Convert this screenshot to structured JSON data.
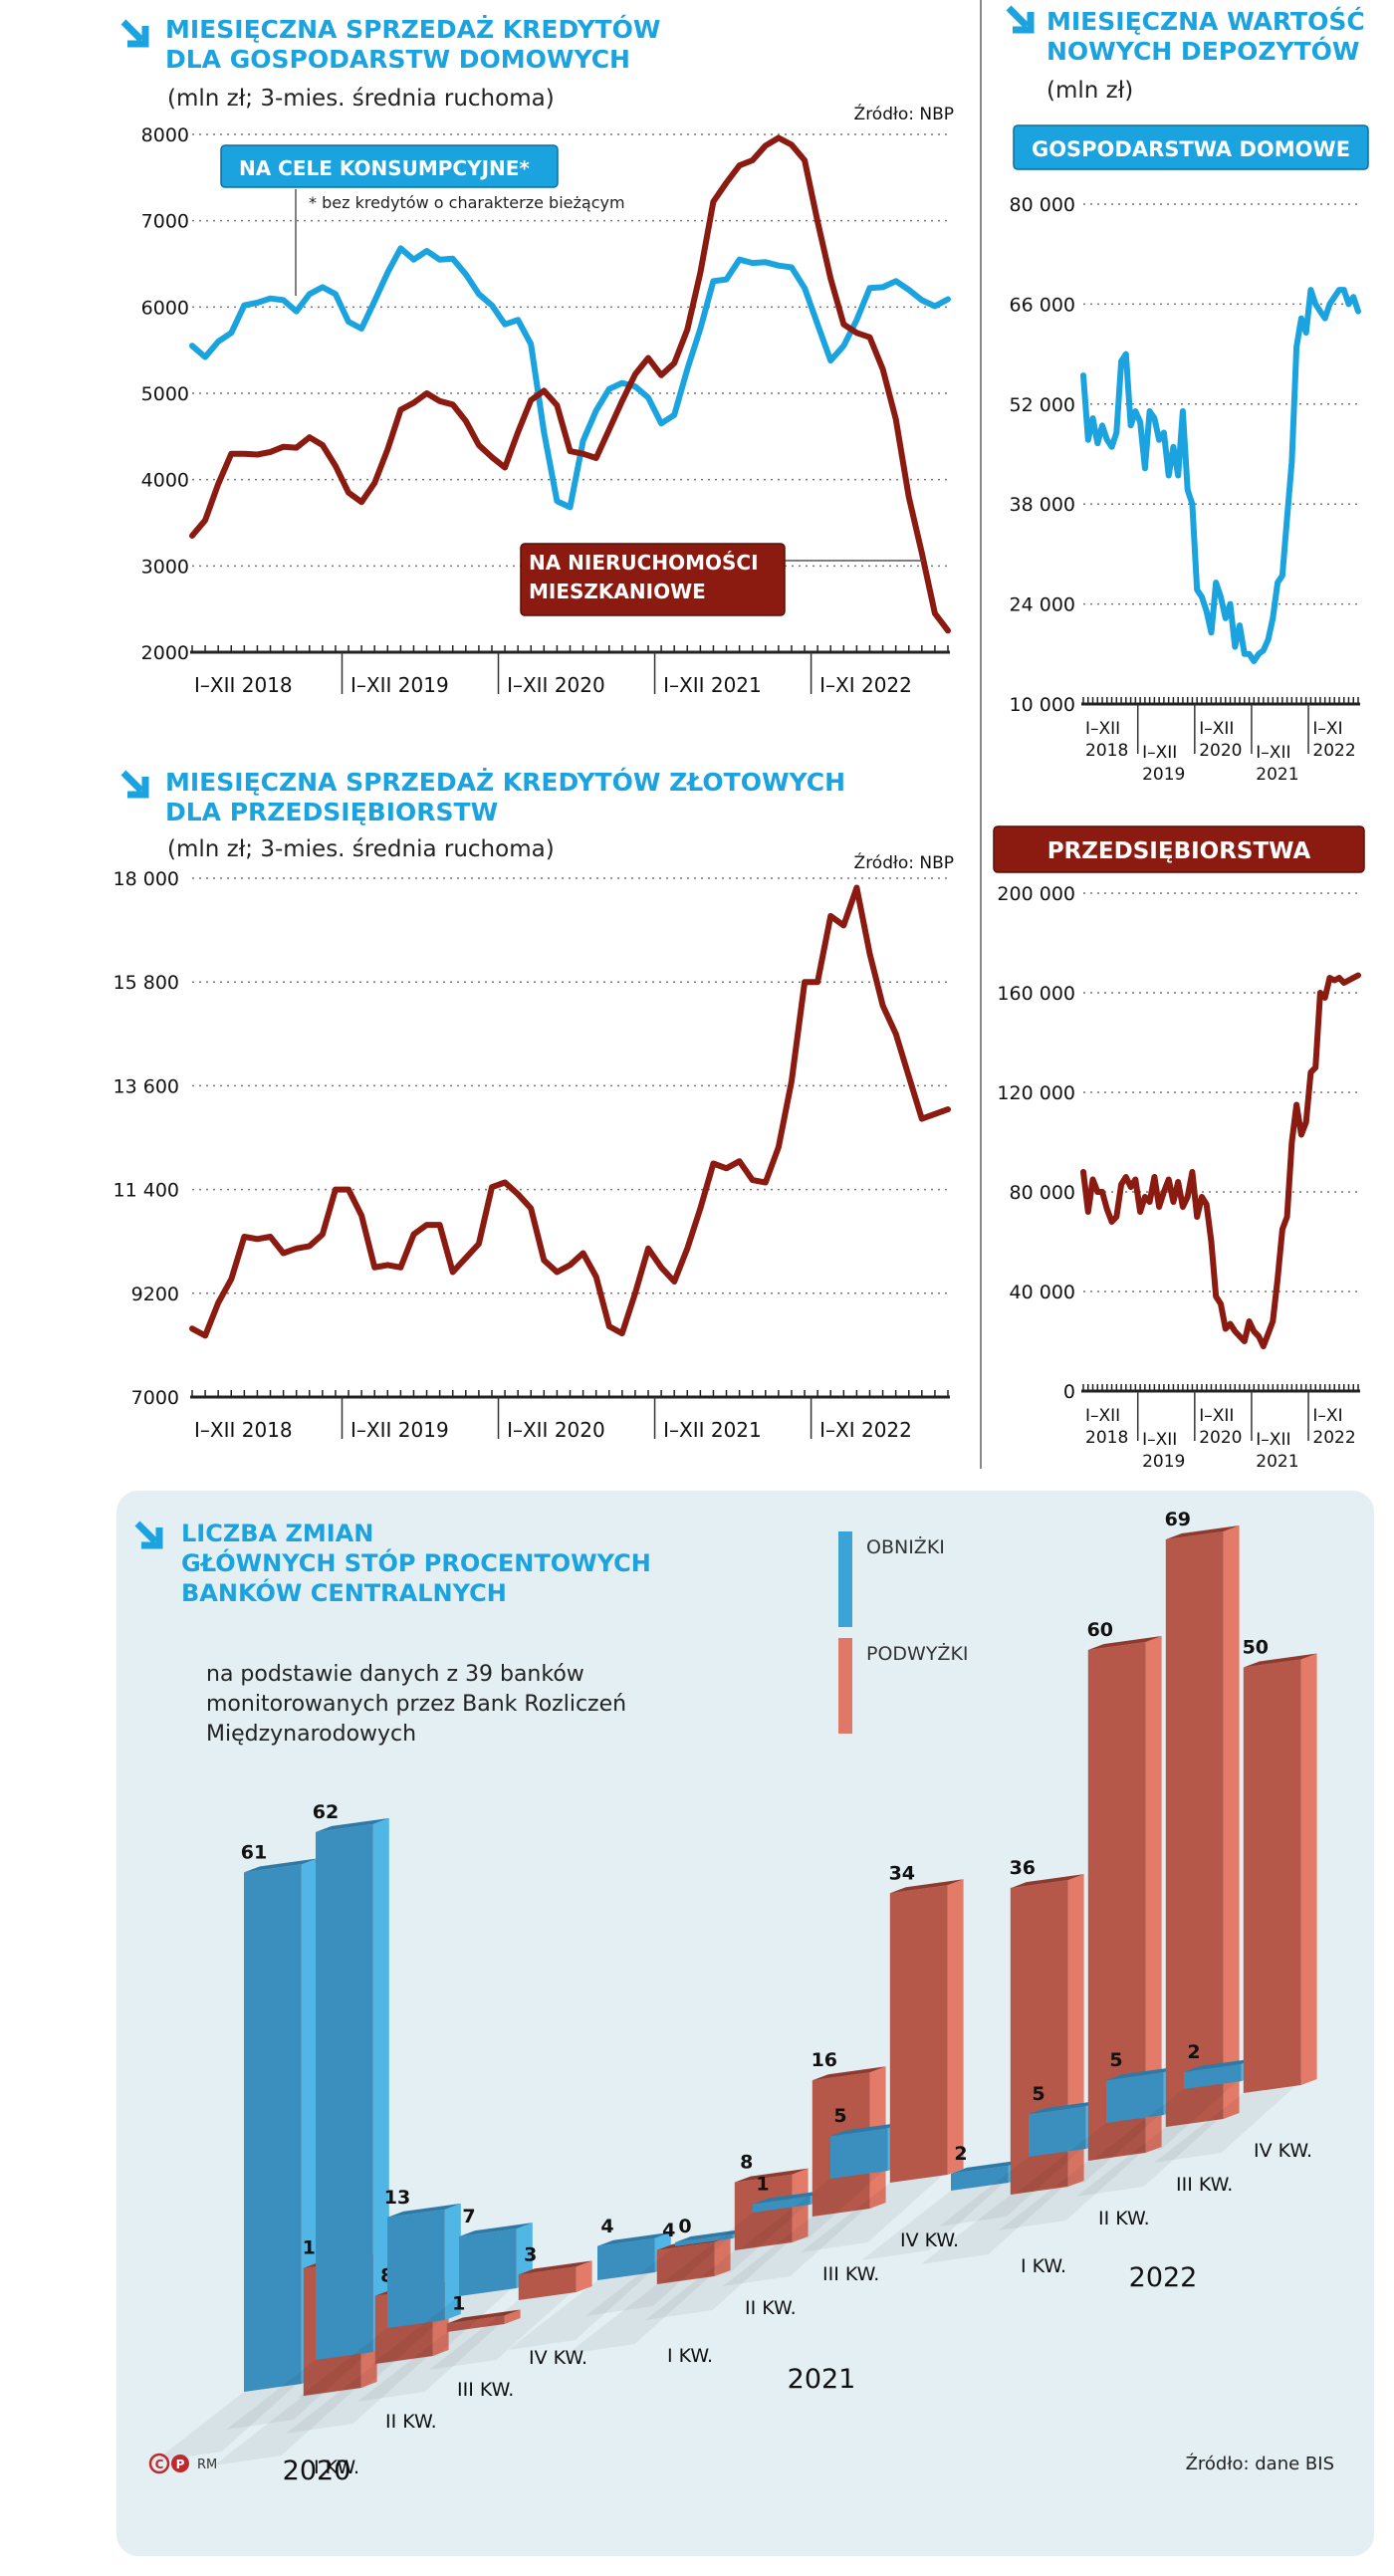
{
  "chart_data": [
    {
      "id": "household",
      "type": "line",
      "title": [
        "MIESIĘCZNA SPRZEDAŻ KREDYTÓW",
        "DLA GOSPODARSTW DOMOWYCH"
      ],
      "subtitle": "(mln zł; 3-mies. średnia ruchoma)",
      "source": "Źródło: NBP",
      "ylim": [
        2000,
        8000
      ],
      "yticks": [
        "8000",
        "7000",
        "6000",
        "5000",
        "4000",
        "3000",
        "2000"
      ],
      "ytick_values": [
        8000,
        7000,
        6000,
        5000,
        4000,
        3000,
        2000
      ],
      "xlabels": [
        "I–XII 2018",
        "I–XII 2019",
        "I–XII 2020",
        "I–XII 2021",
        "I–XI 2022"
      ],
      "n_months": 59,
      "series": [
        {
          "name": "NA CELE KONSUMPCYJNE*",
          "note": "* bez kredytów o charakterze bieżącym",
          "color": "#1aa3df",
          "values": [
            5550,
            5420,
            5600,
            5700,
            6020,
            6050,
            6100,
            6080,
            5950,
            6150,
            6230,
            6150,
            5830,
            5750,
            6070,
            6400,
            6680,
            6550,
            6650,
            6550,
            6560,
            6380,
            6150,
            6020,
            5800,
            5850,
            5570,
            4550,
            3750,
            3680,
            4450,
            4800,
            5050,
            5120,
            5080,
            4950,
            4650,
            4750,
            5280,
            5750,
            6300,
            6320,
            6550,
            6510,
            6520,
            6480,
            6460,
            6220,
            5800,
            5380,
            5550,
            5850,
            6220,
            6230,
            6300,
            6200,
            6080,
            6010,
            6090
          ]
        },
        {
          "name": "NA NIERUCHOMOŚCI MIESZKANIOWE",
          "color": "#8b1a10",
          "values": [
            3350,
            3530,
            3950,
            4300,
            4300,
            4290,
            4320,
            4380,
            4370,
            4490,
            4400,
            4160,
            3850,
            3740,
            3960,
            4350,
            4810,
            4890,
            5000,
            4910,
            4870,
            4680,
            4400,
            4260,
            4140,
            4550,
            4920,
            5030,
            4860,
            4330,
            4300,
            4250,
            4580,
            4910,
            5220,
            5410,
            5210,
            5350,
            5740,
            6400,
            7220,
            7440,
            7640,
            7700,
            7870,
            7960,
            7880,
            7700,
            6990,
            6330,
            5800,
            5700,
            5650,
            5280,
            4700,
            3800,
            3150,
            2450,
            2250
          ]
        }
      ]
    },
    {
      "id": "household_deposits",
      "type": "line",
      "title": [
        "MIESIĘCZNA WARTOŚĆ",
        "NOWYCH DEPOZYTÓW"
      ],
      "subtitle": "(mln zł)",
      "panel_label": "GOSPODARSTWA DOMOWE",
      "ylim": [
        10000,
        80000
      ],
      "yticks": [
        "80 000",
        "66 000",
        "52 000",
        "38 000",
        "24 000",
        "10 000"
      ],
      "ytick_values": [
        80000,
        66000,
        52000,
        38000,
        24000,
        10000
      ],
      "xlabels": [
        [
          "I–XII",
          "2018"
        ],
        [
          "I–XII",
          "2019"
        ],
        [
          "I–XII",
          "2020"
        ],
        [
          "I–XII",
          "2021"
        ],
        [
          "I–XI",
          "2022"
        ]
      ],
      "n_months": 59,
      "series": [
        {
          "name": "GOSPODARSTWA DOMOWE",
          "color": "#1aa3df",
          "values": [
            56000,
            47000,
            50000,
            46500,
            49000,
            47000,
            46000,
            48000,
            58000,
            59000,
            49000,
            51000,
            49500,
            43000,
            51000,
            50000,
            47000,
            48000,
            42000,
            46000,
            42000,
            51000,
            40000,
            38000,
            26000,
            25000,
            23000,
            20000,
            27000,
            25000,
            22000,
            24000,
            18000,
            21000,
            17000,
            17000,
            16000,
            17000,
            17500,
            19000,
            22000,
            27000,
            28000,
            36000,
            44000,
            60000,
            64000,
            62000,
            68000,
            66000,
            65000,
            64000,
            66000,
            67000,
            68000,
            68000,
            66000,
            67000,
            65000
          ]
        }
      ]
    },
    {
      "id": "corporate",
      "type": "line",
      "title": [
        "MIESIĘCZNA SPRZEDAŻ KREDYTÓW ZŁOTOWYCH",
        "DLA PRZEDSIĘBIORSTW"
      ],
      "subtitle": "(mln zł; 3-mies. średnia ruchoma)",
      "source": "Źródło: NBP",
      "ylim": [
        7000,
        18000
      ],
      "yticks": [
        "18 000",
        "15 800",
        "13 600",
        "11 400",
        "9200",
        "7000"
      ],
      "ytick_values": [
        18000,
        15800,
        13600,
        11400,
        9200,
        7000
      ],
      "xlabels": [
        "I–XII 2018",
        "I–XII 2019",
        "I–XII 2020",
        "I–XII 2021",
        "I–XI 2022"
      ],
      "n_months": 59,
      "series": [
        {
          "name": "Przedsiębiorstwa",
          "color": "#8b1a10",
          "values": [
            8450,
            8300,
            9000,
            9500,
            10400,
            10350,
            10400,
            10050,
            10150,
            10200,
            10450,
            11400,
            11400,
            10850,
            9750,
            9800,
            9750,
            10450,
            10650,
            10650,
            9650,
            9950,
            10250,
            11450,
            11550,
            11300,
            11000,
            9900,
            9650,
            9800,
            10050,
            9550,
            8500,
            8350,
            9200,
            10150,
            9750,
            9450,
            10150,
            11000,
            11950,
            11850,
            12000,
            11600,
            11550,
            12300,
            13700,
            15800,
            15800,
            17200,
            17000,
            17800,
            16400,
            15300,
            14700,
            13800,
            12900,
            13000,
            13100
          ]
        }
      ]
    },
    {
      "id": "corporate_deposits",
      "type": "line",
      "panel_label": "PRZEDSIĘBIORSTWA",
      "ylim": [
        0,
        200000
      ],
      "yticks": [
        "200 000",
        "160 000",
        "120 000",
        "80 000",
        "40 000",
        "0"
      ],
      "ytick_values": [
        200000,
        160000,
        120000,
        80000,
        40000,
        0
      ],
      "xlabels": [
        [
          "I–XII",
          "2018"
        ],
        [
          "I–XII",
          "2019"
        ],
        [
          "I–XII",
          "2020"
        ],
        [
          "I–XII",
          "2021"
        ],
        [
          "I–XI",
          "2022"
        ]
      ],
      "n_months": 59,
      "series": [
        {
          "name": "PRZEDSIĘBIORSTWA",
          "color": "#8b1a10",
          "values": [
            88000,
            72000,
            85000,
            80000,
            80000,
            73000,
            68000,
            70000,
            83000,
            86000,
            82000,
            85000,
            72000,
            78000,
            76000,
            86000,
            74000,
            80000,
            85000,
            76000,
            84000,
            74000,
            78000,
            88000,
            70000,
            78000,
            75000,
            60000,
            38000,
            35000,
            25000,
            27000,
            24000,
            22000,
            20000,
            28000,
            24000,
            22000,
            18000,
            23000,
            28000,
            45000,
            65000,
            70000,
            100000,
            115000,
            103000,
            108000,
            128000,
            130000,
            160000,
            158000,
            166000,
            165000,
            166000,
            164000,
            165000,
            166000,
            167000
          ]
        }
      ]
    },
    {
      "id": "rate_changes",
      "type": "bar",
      "title": [
        "LICZBA ZMIAN",
        "GŁÓWNYCH STÓP PROCENTOWYCH",
        "BANKÓW CENTRALNYCH"
      ],
      "note": [
        "na podstawie danych z 39 banków",
        "monitorowanych przez Bank Rozliczeń",
        "Międzynarodowych"
      ],
      "source": "Źródło: dane BIS",
      "logo": "RM",
      "legend": [
        {
          "name": "OBNIŻKI",
          "color": "#3aa4d6"
        },
        {
          "name": "PODWYŻKI",
          "color": "#e07868"
        }
      ],
      "years": [
        "2020",
        "2021",
        "2022"
      ],
      "categories": [
        "I KW.",
        "II KW.",
        "III KW.",
        "IV KW."
      ],
      "series": [
        {
          "name": "OBNIŻKI",
          "values": [
            [
              61,
              62,
              13,
              7
            ],
            [
              4,
              0,
              1,
              5
            ],
            [
              2,
              5,
              5,
              2
            ]
          ]
        },
        {
          "name": "PODWYŻKI",
          "values": [
            [
              15,
              8,
              1,
              3
            ],
            [
              4,
              8,
              16,
              34
            ],
            [
              36,
              60,
              69,
              50
            ]
          ]
        }
      ]
    }
  ]
}
